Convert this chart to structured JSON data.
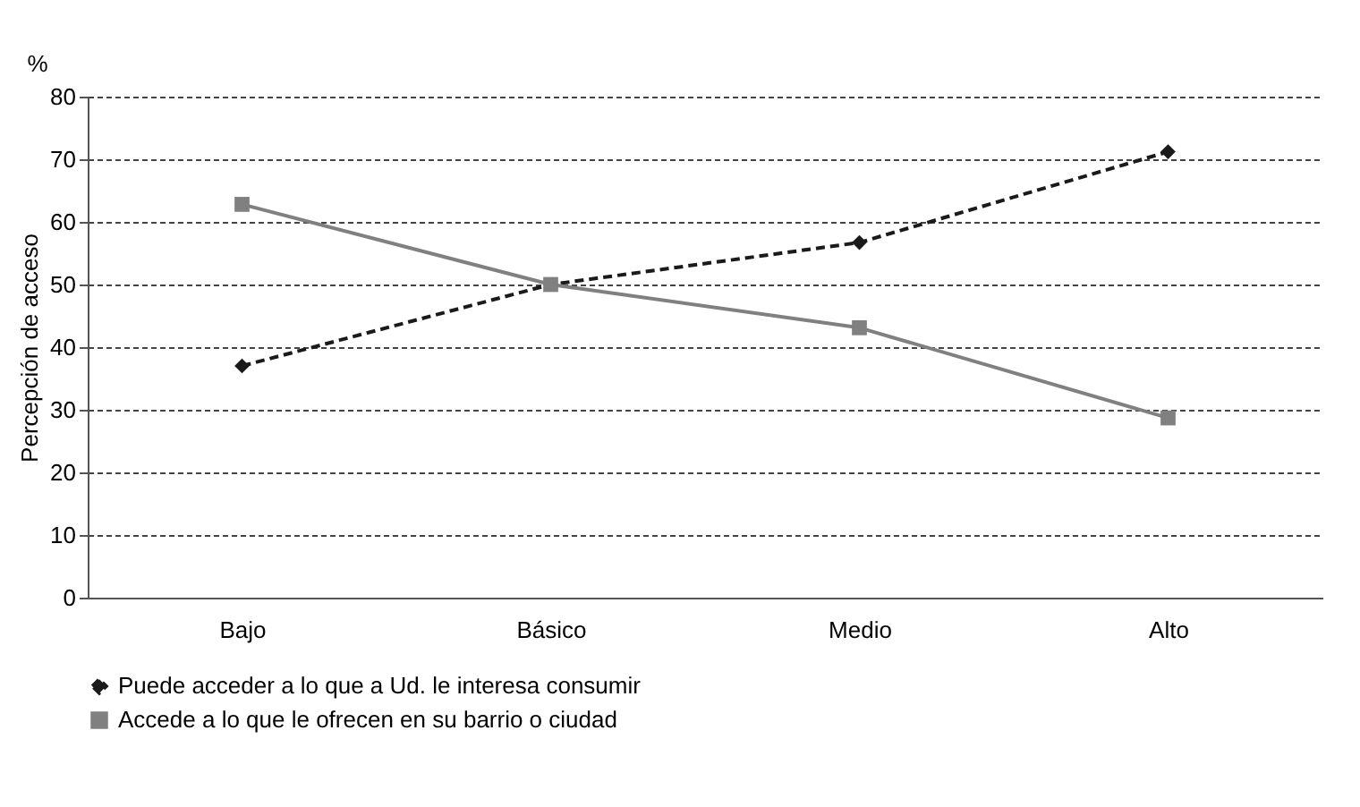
{
  "chart_data": {
    "type": "line",
    "ylabel": "Percepción de acceso",
    "annotations": [
      "%"
    ],
    "categories": [
      "Bajo",
      "Básico",
      "Medio",
      "Alto"
    ],
    "series": [
      {
        "name": "Puede acceder a lo que a Ud. le interesa consumir",
        "color": "#1a1a1a",
        "marker": "diamond",
        "line_style": "dashed",
        "values": [
          37.0,
          50.0,
          56.7,
          71.2
        ]
      },
      {
        "name": "Accede a lo que le ofrecen en su barrio o ciudad",
        "color": "#808080",
        "marker": "square",
        "line_style": "solid",
        "values": [
          62.8,
          50.0,
          43.1,
          28.7
        ]
      }
    ],
    "ylim": [
      0,
      80
    ],
    "yticks": [
      0,
      10,
      20,
      30,
      40,
      50,
      60,
      70,
      80
    ],
    "grid": "y",
    "legend": "bottom"
  }
}
